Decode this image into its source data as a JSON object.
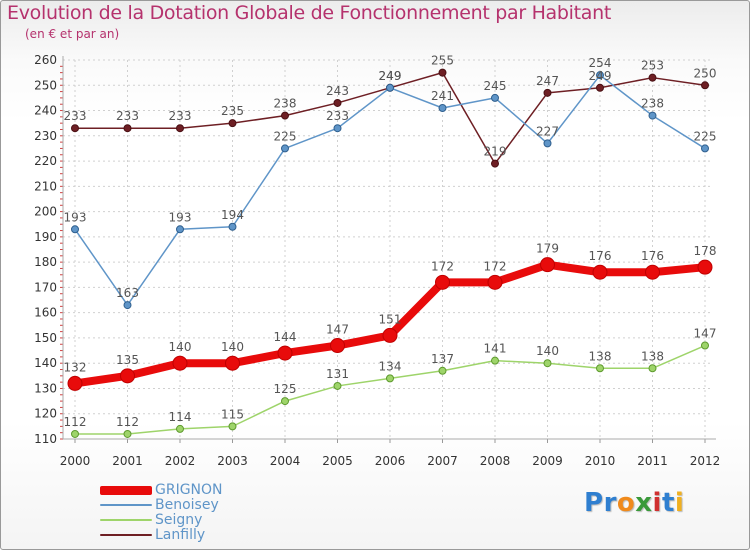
{
  "title": "Evolution de la Dotation Globale de Fonctionnement par Habitant",
  "subtitle": "(en € et par an)",
  "brand": "Proxiti",
  "chart_data": {
    "type": "line",
    "x": [
      "2000",
      "2001",
      "2002",
      "2003",
      "2004",
      "2005",
      "2006",
      "2007",
      "2008",
      "2009",
      "2010",
      "2011",
      "2012"
    ],
    "ylim": [
      110,
      260
    ],
    "yticks": [
      110,
      120,
      130,
      140,
      150,
      160,
      170,
      180,
      190,
      200,
      210,
      220,
      230,
      240,
      250,
      260
    ],
    "grid": true,
    "xlabel": "",
    "ylabel": "",
    "legend_position": "bottom-left",
    "series": [
      {
        "name": "Lanfilly",
        "color": "#6e1f24",
        "values": [
          233,
          233,
          233,
          235,
          238,
          243,
          249,
          255,
          219,
          247,
          249,
          253,
          250
        ]
      },
      {
        "name": "Benoisey",
        "color": "#5f95c8",
        "values": [
          193,
          163,
          193,
          194,
          225,
          233,
          249,
          241,
          245,
          227,
          254,
          238,
          225
        ]
      },
      {
        "name": "Seigny",
        "color": "#9ed46a",
        "values": [
          112,
          112,
          114,
          115,
          125,
          131,
          134,
          137,
          141,
          140,
          138,
          138,
          147
        ]
      },
      {
        "name": "GRIGNON",
        "color": "#e80b0b",
        "values": [
          132,
          135,
          140,
          140,
          144,
          147,
          151,
          172,
          172,
          179,
          176,
          176,
          178
        ]
      }
    ],
    "legend": [
      "GRIGNON",
      "Benoisey",
      "Seigny",
      "Lanfilly"
    ]
  }
}
